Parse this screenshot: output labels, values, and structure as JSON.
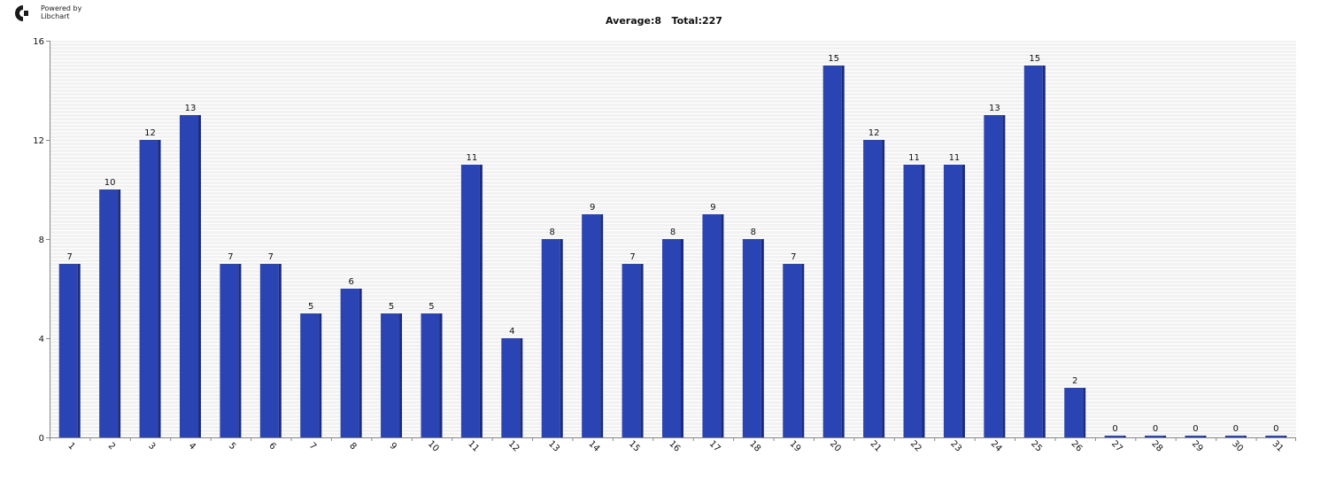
{
  "header": {
    "logo_line1": "Powered by",
    "logo_line2": "Libchart"
  },
  "chart_data": {
    "type": "bar",
    "title": "Average:8   Total:227",
    "categories": [
      "1",
      "2",
      "3",
      "4",
      "5",
      "6",
      "7",
      "8",
      "9",
      "10",
      "11",
      "12",
      "13",
      "14",
      "15",
      "16",
      "17",
      "18",
      "19",
      "20",
      "21",
      "22",
      "23",
      "24",
      "25",
      "26",
      "27",
      "28",
      "29",
      "30",
      "31"
    ],
    "values": [
      7,
      10,
      12,
      13,
      7,
      7,
      5,
      6,
      5,
      5,
      11,
      4,
      8,
      9,
      7,
      8,
      9,
      8,
      7,
      15,
      12,
      11,
      11,
      13,
      15,
      2,
      0,
      0,
      0,
      0,
      0
    ],
    "ylim": [
      0,
      16
    ],
    "yticks": [
      0,
      4,
      8,
      12,
      16
    ],
    "xlabel": "",
    "ylabel": "",
    "grid": true,
    "colors": {
      "bar": "#2B44B4",
      "bar_shade": "#1C2C7A",
      "plot_bg": "#F2F2F2",
      "grid": "#FFFFFF",
      "axis": "#888888"
    }
  }
}
